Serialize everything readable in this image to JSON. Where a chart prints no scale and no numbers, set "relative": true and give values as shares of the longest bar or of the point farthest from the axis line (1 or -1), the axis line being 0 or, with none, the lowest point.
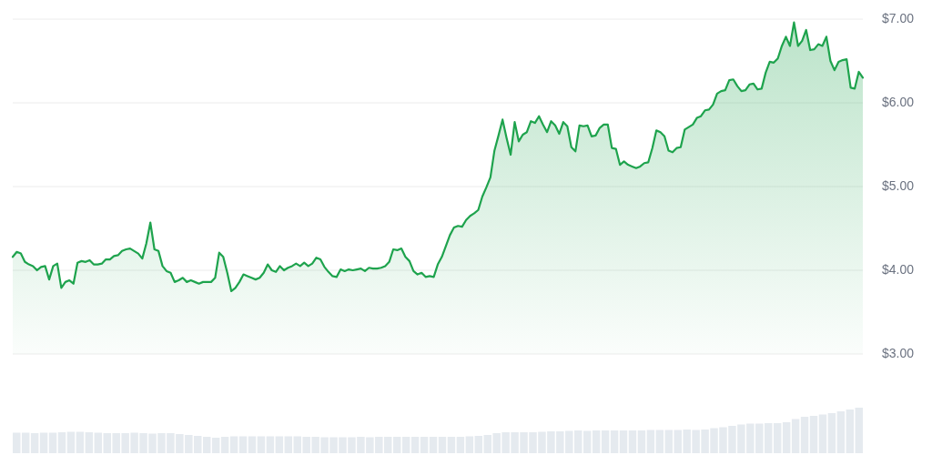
{
  "chart_data": [
    {
      "type": "area",
      "ylim": [
        3,
        7
      ],
      "yticks": [
        {
          "value": 3,
          "label": "$3.00"
        },
        {
          "value": 4,
          "label": "$4.00"
        },
        {
          "value": 5,
          "label": "$5.00"
        },
        {
          "value": 6,
          "label": "$6.00"
        },
        {
          "value": 7,
          "label": "$7.00"
        }
      ],
      "grid": "y",
      "tick_labels": "y",
      "categories": [
        null,
        null,
        null,
        null,
        null,
        null,
        null,
        null,
        null,
        null,
        null,
        null,
        null,
        null,
        null,
        null,
        null,
        null,
        null,
        null,
        null,
        null,
        null,
        null,
        null,
        null,
        null,
        null,
        null,
        null,
        null,
        null,
        null,
        null,
        null,
        null,
        null,
        null,
        null,
        null,
        null,
        null,
        null,
        null,
        null,
        null,
        null,
        null,
        null,
        null,
        null,
        null,
        null,
        null,
        null,
        null,
        null,
        null,
        null,
        null,
        null,
        null,
        null,
        null,
        null,
        null,
        null,
        null,
        null,
        null,
        null,
        null,
        null,
        null,
        null,
        null,
        null,
        null,
        null,
        null,
        null,
        null,
        null,
        null,
        null,
        null,
        null,
        null,
        null,
        null,
        null,
        null,
        null,
        null,
        null,
        null,
        null,
        null,
        null,
        null,
        null,
        null,
        null,
        null,
        null,
        null,
        null,
        null,
        null,
        null,
        null,
        null,
        null,
        null,
        null,
        null,
        null,
        null,
        null,
        null,
        null,
        null,
        null,
        null,
        null,
        null,
        null,
        null,
        null,
        null,
        null,
        null,
        null,
        null,
        null,
        null,
        null,
        null,
        null,
        null,
        null,
        null,
        null,
        null,
        null,
        null,
        null,
        null,
        null,
        null,
        null,
        null,
        null,
        null,
        null,
        null,
        null,
        null,
        null,
        null,
        null,
        null,
        null,
        null,
        null,
        null,
        null,
        null,
        null,
        null,
        null,
        null,
        null,
        null,
        null,
        null,
        null,
        null,
        null,
        null,
        null,
        null,
        null,
        null,
        null,
        null,
        null,
        null,
        null,
        null,
        null,
        null,
        null,
        null,
        null,
        null,
        null,
        null,
        null,
        null,
        null,
        null,
        null,
        null,
        null,
        null,
        null,
        null,
        null,
        null,
        null
      ],
      "series": [
        {
          "color": "#1ea34d",
          "values": [
            4.16,
            4.22,
            4.2,
            4.1,
            4.07,
            4.05,
            4.0,
            4.04,
            4.05,
            3.89,
            4.05,
            4.08,
            3.79,
            3.86,
            3.88,
            3.84,
            4.09,
            4.11,
            4.1,
            4.12,
            4.07,
            4.07,
            4.08,
            4.13,
            4.13,
            4.17,
            4.18,
            4.23,
            4.25,
            4.26,
            4.23,
            4.2,
            4.14,
            4.32,
            4.57,
            4.25,
            4.23,
            4.05,
            3.99,
            3.97,
            3.86,
            3.88,
            3.91,
            3.86,
            3.88,
            3.86,
            3.84,
            3.86,
            3.86,
            3.86,
            3.91,
            4.21,
            4.16,
            3.97,
            3.75,
            3.79,
            3.86,
            3.95,
            3.93,
            3.91,
            3.89,
            3.91,
            3.97,
            4.07,
            4.0,
            3.98,
            4.05,
            4.0,
            4.03,
            4.05,
            4.08,
            4.05,
            4.09,
            4.05,
            4.08,
            4.15,
            4.13,
            4.04,
            3.98,
            3.93,
            3.92,
            4.01,
            3.99,
            4.01,
            4.0,
            4.01,
            4.02,
            3.99,
            4.03,
            4.02,
            4.02,
            4.03,
            4.05,
            4.1,
            4.25,
            4.24,
            4.26,
            4.16,
            4.11,
            3.99,
            3.95,
            3.97,
            3.92,
            3.93,
            3.92,
            4.07,
            4.16,
            4.29,
            4.42,
            4.51,
            4.53,
            4.52,
            4.6,
            4.65,
            4.68,
            4.72,
            4.88,
            4.99,
            5.11,
            5.43,
            5.61,
            5.8,
            5.58,
            5.38,
            5.77,
            5.54,
            5.62,
            5.65,
            5.78,
            5.76,
            5.84,
            5.74,
            5.65,
            5.78,
            5.73,
            5.63,
            5.77,
            5.72,
            5.47,
            5.42,
            5.73,
            5.72,
            5.73,
            5.6,
            5.61,
            5.7,
            5.74,
            5.74,
            5.46,
            5.45,
            5.26,
            5.3,
            5.26,
            5.24,
            5.22,
            5.24,
            5.28,
            5.29,
            5.46,
            5.67,
            5.65,
            5.6,
            5.43,
            5.41,
            5.46,
            5.47,
            5.68,
            5.71,
            5.74,
            5.82,
            5.84,
            5.91,
            5.92,
            5.98,
            6.11,
            6.14,
            6.15,
            6.27,
            6.28,
            6.2,
            6.14,
            6.15,
            6.22,
            6.23,
            6.16,
            6.17,
            6.36,
            6.49,
            6.48,
            6.53,
            6.68,
            6.79,
            6.68,
            6.96,
            6.68,
            6.74,
            6.87,
            6.63,
            6.64,
            6.7,
            6.68,
            6.79,
            6.5,
            6.39,
            6.49,
            6.51,
            6.52,
            6.18,
            6.17,
            6.37,
            6.3
          ]
        }
      ]
    },
    {
      "type": "bar",
      "relative": true,
      "categories": [
        null,
        null,
        null,
        null,
        null,
        null,
        null,
        null,
        null,
        null,
        null,
        null,
        null,
        null,
        null,
        null,
        null,
        null,
        null,
        null,
        null,
        null,
        null,
        null,
        null,
        null,
        null,
        null,
        null,
        null,
        null,
        null,
        null,
        null,
        null,
        null,
        null,
        null,
        null,
        null,
        null,
        null,
        null,
        null,
        null,
        null,
        null,
        null,
        null,
        null,
        null,
        null,
        null,
        null,
        null,
        null,
        null,
        null,
        null,
        null,
        null,
        null,
        null,
        null,
        null,
        null,
        null,
        null,
        null,
        null,
        null,
        null,
        null,
        null,
        null,
        null,
        null,
        null,
        null,
        null,
        null,
        null,
        null,
        null,
        null,
        null,
        null,
        null,
        null,
        null,
        null,
        null,
        null,
        null
      ],
      "series": [
        {
          "color": "#e5eaef",
          "values": [
            0.45,
            0.45,
            0.44,
            0.45,
            0.45,
            0.46,
            0.47,
            0.47,
            0.46,
            0.45,
            0.44,
            0.44,
            0.44,
            0.45,
            0.44,
            0.43,
            0.44,
            0.44,
            0.42,
            0.4,
            0.38,
            0.36,
            0.34,
            0.36,
            0.37,
            0.37,
            0.37,
            0.37,
            0.37,
            0.37,
            0.37,
            0.37,
            0.36,
            0.36,
            0.35,
            0.35,
            0.35,
            0.35,
            0.36,
            0.35,
            0.36,
            0.36,
            0.36,
            0.36,
            0.36,
            0.36,
            0.36,
            0.36,
            0.36,
            0.36,
            0.37,
            0.38,
            0.4,
            0.44,
            0.46,
            0.46,
            0.46,
            0.46,
            0.47,
            0.48,
            0.48,
            0.49,
            0.5,
            0.49,
            0.5,
            0.5,
            0.5,
            0.5,
            0.5,
            0.5,
            0.51,
            0.51,
            0.51,
            0.51,
            0.52,
            0.51,
            0.52,
            0.55,
            0.57,
            0.6,
            0.63,
            0.65,
            0.65,
            0.66,
            0.66,
            0.68,
            0.75,
            0.8,
            0.82,
            0.85,
            0.88,
            0.92,
            0.96,
            1.0
          ]
        }
      ]
    }
  ]
}
